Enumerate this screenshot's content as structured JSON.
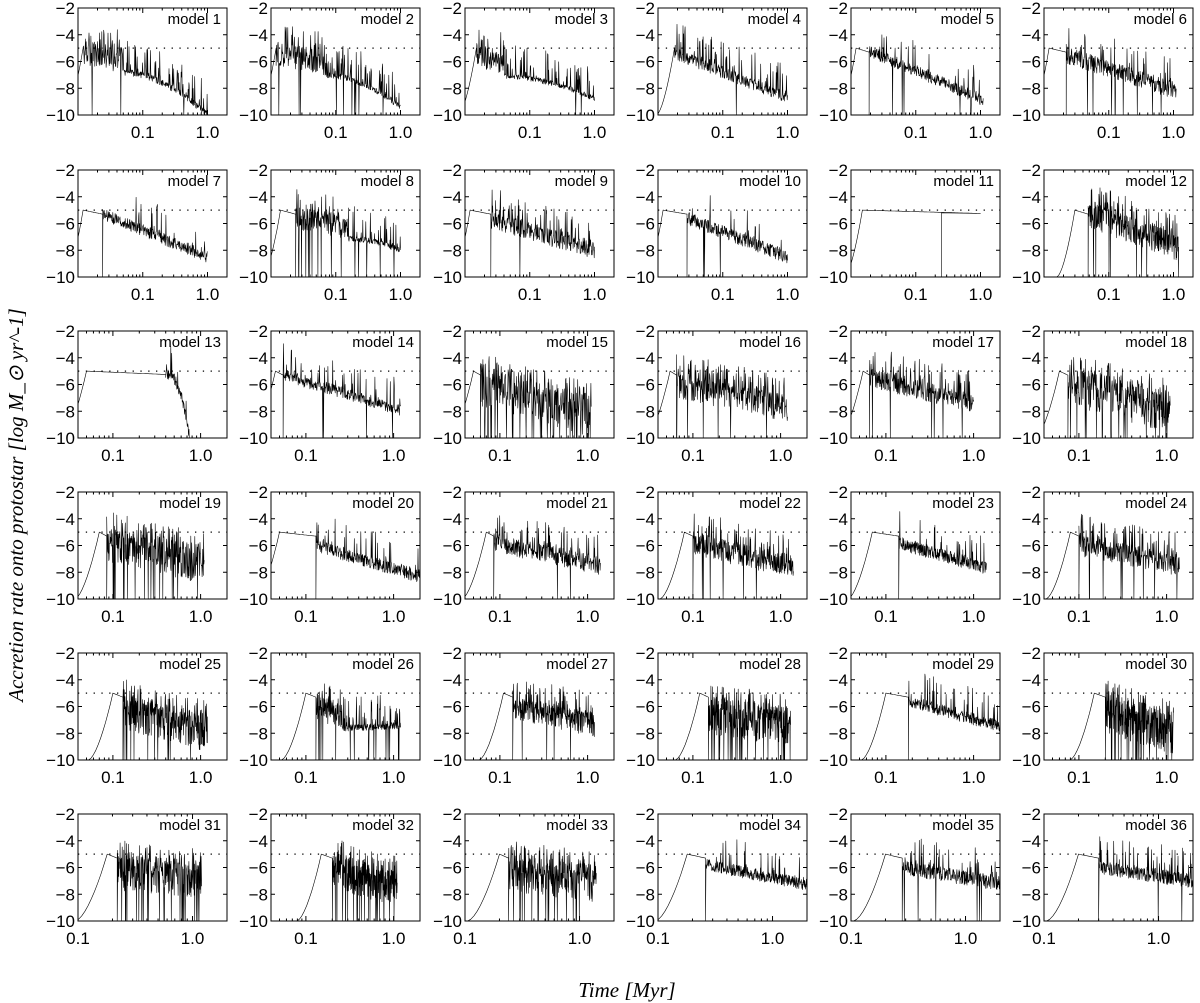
{
  "chart_data": {
    "type": "line",
    "layout": "grid of small multiples, 6 rows x 6 columns",
    "xlabel": "Time [Myr]",
    "ylabel": "Accretion rate onto protostar [log M_⊙ yr^-1]",
    "x_scale": "log",
    "ylim": [
      -10,
      -2
    ],
    "y_ticks": [
      -2,
      -4,
      -6,
      -8,
      -10
    ],
    "y_tick_labels": [
      "−2",
      "−4",
      "−6",
      "−8",
      "−10"
    ],
    "reference_line": {
      "y": -5,
      "style": "dotted"
    },
    "x_tick_set_a": {
      "xlim": [
        0.01,
        2.0
      ],
      "ticks": [
        0.1,
        1.0
      ],
      "labels": [
        "0.1",
        "1.0"
      ]
    },
    "x_tick_set_b": {
      "xlim": [
        0.04,
        2.0
      ],
      "ticks": [
        0.1,
        1.0
      ],
      "labels": [
        "0.1",
        "1.0"
      ]
    },
    "x_tick_set_c": {
      "xlim": [
        0.1,
        2.0
      ],
      "ticks": [
        0.1,
        1.0
      ],
      "labels": [
        "0.1",
        "1.0"
      ]
    },
    "panels": [
      {
        "title": "model 1",
        "xs": "a",
        "start": 0.012,
        "jump": 0.012,
        "end": 1.0,
        "y0": -5.2,
        "y1": -10,
        "noise": 1.0,
        "spikes": 0.25,
        "dropouts": 0.02,
        "shape": "twophase",
        "break": 0.05
      },
      {
        "title": "model 2",
        "xs": "a",
        "start": 0.012,
        "jump": 0.012,
        "end": 1.0,
        "y0": -5.4,
        "y1": -9.4,
        "noise": 0.9,
        "spikes": 0.25,
        "dropouts": 0.02,
        "shape": "twophase",
        "break": 0.07
      },
      {
        "title": "model 3",
        "xs": "a",
        "start": 0.015,
        "jump": 0.015,
        "end": 1.0,
        "y0": -5.5,
        "y1": -8.8,
        "noise": 0.8,
        "spikes": 0.2,
        "dropouts": 0.02,
        "shape": "twophase",
        "break": 0.04
      },
      {
        "title": "model 4",
        "xs": "a",
        "start": 0.018,
        "jump": 0.018,
        "end": 1.0,
        "y0": -5.4,
        "y1": -8.7,
        "noise": 0.45,
        "spikes": 0.15,
        "dropouts": 0.01
      },
      {
        "title": "model 5",
        "xs": "a",
        "start": 0.012,
        "jump": 0.019,
        "end": 1.1,
        "y0": -5.2,
        "y1": -8.9,
        "noise": 0.45,
        "spikes": 0.08,
        "dropouts": 0.01
      },
      {
        "title": "model 6",
        "xs": "a",
        "start": 0.012,
        "jump": 0.022,
        "end": 1.1,
        "y0": -5.5,
        "y1": -8.2,
        "noise": 0.65,
        "spikes": 0.1,
        "dropouts": 0.02
      },
      {
        "title": "model 7",
        "xs": "a",
        "start": 0.012,
        "jump": 0.024,
        "end": 1.0,
        "y0": -5.3,
        "y1": -8.5,
        "noise": 0.45,
        "spikes": 0.08,
        "dropouts": 0.0
      },
      {
        "title": "model 8",
        "xs": "a",
        "start": 0.014,
        "jump": 0.024,
        "end": 1.0,
        "y0": -5.5,
        "y1": -8.0,
        "noise": 0.9,
        "spikes": 0.2,
        "dropouts": 0.03,
        "shape": "twophase",
        "break": 0.15
      },
      {
        "title": "model 9",
        "xs": "a",
        "start": 0.012,
        "jump": 0.025,
        "end": 1.0,
        "y0": -5.7,
        "y1": -8.0,
        "noise": 0.7,
        "spikes": 0.2,
        "dropouts": 0.02
      },
      {
        "title": "model 10",
        "xs": "a",
        "start": 0.012,
        "jump": 0.028,
        "end": 1.0,
        "y0": -5.6,
        "y1": -8.5,
        "noise": 0.5,
        "spikes": 0.08,
        "dropouts": 0.01
      },
      {
        "title": "model 11",
        "xs": "a",
        "start": 0.015,
        "jump": 1.0,
        "end": 0.25,
        "y0": -5.2,
        "y1": -10,
        "noise": 0.0,
        "spikes": 0.0,
        "dropouts": 0.0,
        "shape": "smooth"
      },
      {
        "title": "model 12",
        "xs": "a",
        "start": 0.03,
        "jump": 0.048,
        "end": 1.2,
        "y0": -5.3,
        "y1": -7.8,
        "noise": 1.0,
        "spikes": 0.25,
        "dropouts": 0.03
      },
      {
        "title": "model 13",
        "xs": "b",
        "start": 0.05,
        "jump": 0.4,
        "end": 0.75,
        "y0": -5.2,
        "y1": -10,
        "noise": 0.4,
        "spikes": 0.05,
        "dropouts": 0.0,
        "shape": "smooth"
      },
      {
        "title": "model 14",
        "xs": "b",
        "start": 0.045,
        "jump": 0.055,
        "end": 1.2,
        "y0": -5.3,
        "y1": -7.9,
        "noise": 0.45,
        "spikes": 0.12,
        "dropouts": 0.01
      },
      {
        "title": "model 15",
        "xs": "b",
        "start": 0.05,
        "jump": 0.06,
        "end": 1.1,
        "y0": -6.0,
        "y1": -8.3,
        "noise": 1.6,
        "spikes": 0.35,
        "dropouts": 0.1
      },
      {
        "title": "model 16",
        "xs": "b",
        "start": 0.055,
        "jump": 0.065,
        "end": 1.2,
        "y0": -6.0,
        "y1": -7.8,
        "noise": 1.0,
        "spikes": 0.3,
        "dropouts": 0.03
      },
      {
        "title": "model 17",
        "xs": "b",
        "start": 0.055,
        "jump": 0.065,
        "end": 1.0,
        "y0": -5.5,
        "y1": -7.4,
        "noise": 0.7,
        "spikes": 0.2,
        "dropouts": 0.02
      },
      {
        "title": "model 18",
        "xs": "b",
        "start": 0.06,
        "jump": 0.075,
        "end": 1.1,
        "y0": -6.0,
        "y1": -8.0,
        "noise": 1.6,
        "spikes": 0.35,
        "dropouts": 0.07
      },
      {
        "title": "model 19",
        "xs": "b",
        "start": 0.07,
        "jump": 0.085,
        "end": 1.1,
        "y0": -5.8,
        "y1": -7.5,
        "noise": 1.4,
        "spikes": 0.3,
        "dropouts": 0.05
      },
      {
        "title": "model 20",
        "xs": "b",
        "start": 0.05,
        "jump": 0.13,
        "end": 2.0,
        "y0": -6.0,
        "y1": -8.3,
        "noise": 0.5,
        "spikes": 0.1,
        "dropouts": 0.0
      },
      {
        "title": "model 21",
        "xs": "b",
        "start": 0.07,
        "jump": 0.085,
        "end": 1.4,
        "y0": -5.8,
        "y1": -7.5,
        "noise": 0.7,
        "spikes": 0.2,
        "dropouts": 0.01
      },
      {
        "title": "model 22",
        "xs": "b",
        "start": 0.08,
        "jump": 0.1,
        "end": 1.4,
        "y0": -5.8,
        "y1": -7.6,
        "noise": 0.9,
        "spikes": 0.2,
        "dropouts": 0.02
      },
      {
        "title": "model 23",
        "xs": "b",
        "start": 0.07,
        "jump": 0.14,
        "end": 1.4,
        "y0": -5.8,
        "y1": -7.7,
        "noise": 0.5,
        "spikes": 0.1,
        "dropouts": 0.0
      },
      {
        "title": "model 24",
        "xs": "b",
        "start": 0.08,
        "jump": 0.1,
        "end": 1.4,
        "y0": -6.0,
        "y1": -7.5,
        "noise": 0.8,
        "spikes": 0.25,
        "dropouts": 0.02
      },
      {
        "title": "model 25",
        "xs": "b",
        "start": 0.1,
        "jump": 0.13,
        "end": 1.2,
        "y0": -6.3,
        "y1": -8.0,
        "noise": 1.4,
        "spikes": 0.35,
        "dropouts": 0.03
      },
      {
        "title": "model 26",
        "xs": "b",
        "start": 0.1,
        "jump": 0.13,
        "end": 1.2,
        "y0": -6.0,
        "y1": -7.4,
        "noise": 1.0,
        "spikes": 0.25,
        "dropouts": 0.04,
        "shape": "twophase",
        "break": 0.26
      },
      {
        "title": "model 27",
        "xs": "b",
        "start": 0.11,
        "jump": 0.14,
        "end": 1.2,
        "y0": -6.0,
        "y1": -7.4,
        "noise": 0.9,
        "spikes": 0.2,
        "dropouts": 0.01
      },
      {
        "title": "model 28",
        "xs": "b",
        "start": 0.12,
        "jump": 0.15,
        "end": 1.3,
        "y0": -6.6,
        "y1": -7.5,
        "noise": 1.5,
        "spikes": 0.35,
        "dropouts": 0.07
      },
      {
        "title": "model 29",
        "xs": "b",
        "start": 0.1,
        "jump": 0.18,
        "end": 2.0,
        "y0": -5.6,
        "y1": -7.5,
        "noise": 0.45,
        "spikes": 0.08,
        "dropouts": 0.0
      },
      {
        "title": "model 30",
        "xs": "b",
        "start": 0.15,
        "jump": 0.2,
        "end": 1.2,
        "y0": -6.4,
        "y1": -8.0,
        "noise": 1.6,
        "spikes": 0.35,
        "dropouts": 0.07
      },
      {
        "title": "model 31",
        "xs": "c",
        "start": 0.18,
        "jump": 0.22,
        "end": 1.2,
        "y0": -6.3,
        "y1": -6.9,
        "noise": 1.4,
        "spikes": 0.3,
        "dropouts": 0.06
      },
      {
        "title": "model 32",
        "xs": "b",
        "start": 0.15,
        "jump": 0.2,
        "end": 1.1,
        "y0": -6.2,
        "y1": -7.6,
        "noise": 1.4,
        "spikes": 0.3,
        "dropouts": 0.06
      },
      {
        "title": "model 33",
        "xs": "c",
        "start": 0.2,
        "jump": 0.24,
        "end": 1.4,
        "y0": -6.4,
        "y1": -7.2,
        "noise": 1.4,
        "spikes": 0.35,
        "dropouts": 0.05
      },
      {
        "title": "model 34",
        "xs": "c",
        "start": 0.18,
        "jump": 0.26,
        "end": 2.0,
        "y0": -5.8,
        "y1": -7.3,
        "noise": 0.45,
        "spikes": 0.08,
        "dropouts": 0.0
      },
      {
        "title": "model 35",
        "xs": "c",
        "start": 0.2,
        "jump": 0.28,
        "end": 2.0,
        "y0": -6.0,
        "y1": -7.2,
        "noise": 0.55,
        "spikes": 0.12,
        "dropouts": 0.01
      },
      {
        "title": "model 36",
        "xs": "c",
        "start": 0.2,
        "jump": 0.3,
        "end": 2.0,
        "y0": -6.0,
        "y1": -7.0,
        "noise": 0.55,
        "spikes": 0.12,
        "dropouts": 0.01
      }
    ]
  }
}
